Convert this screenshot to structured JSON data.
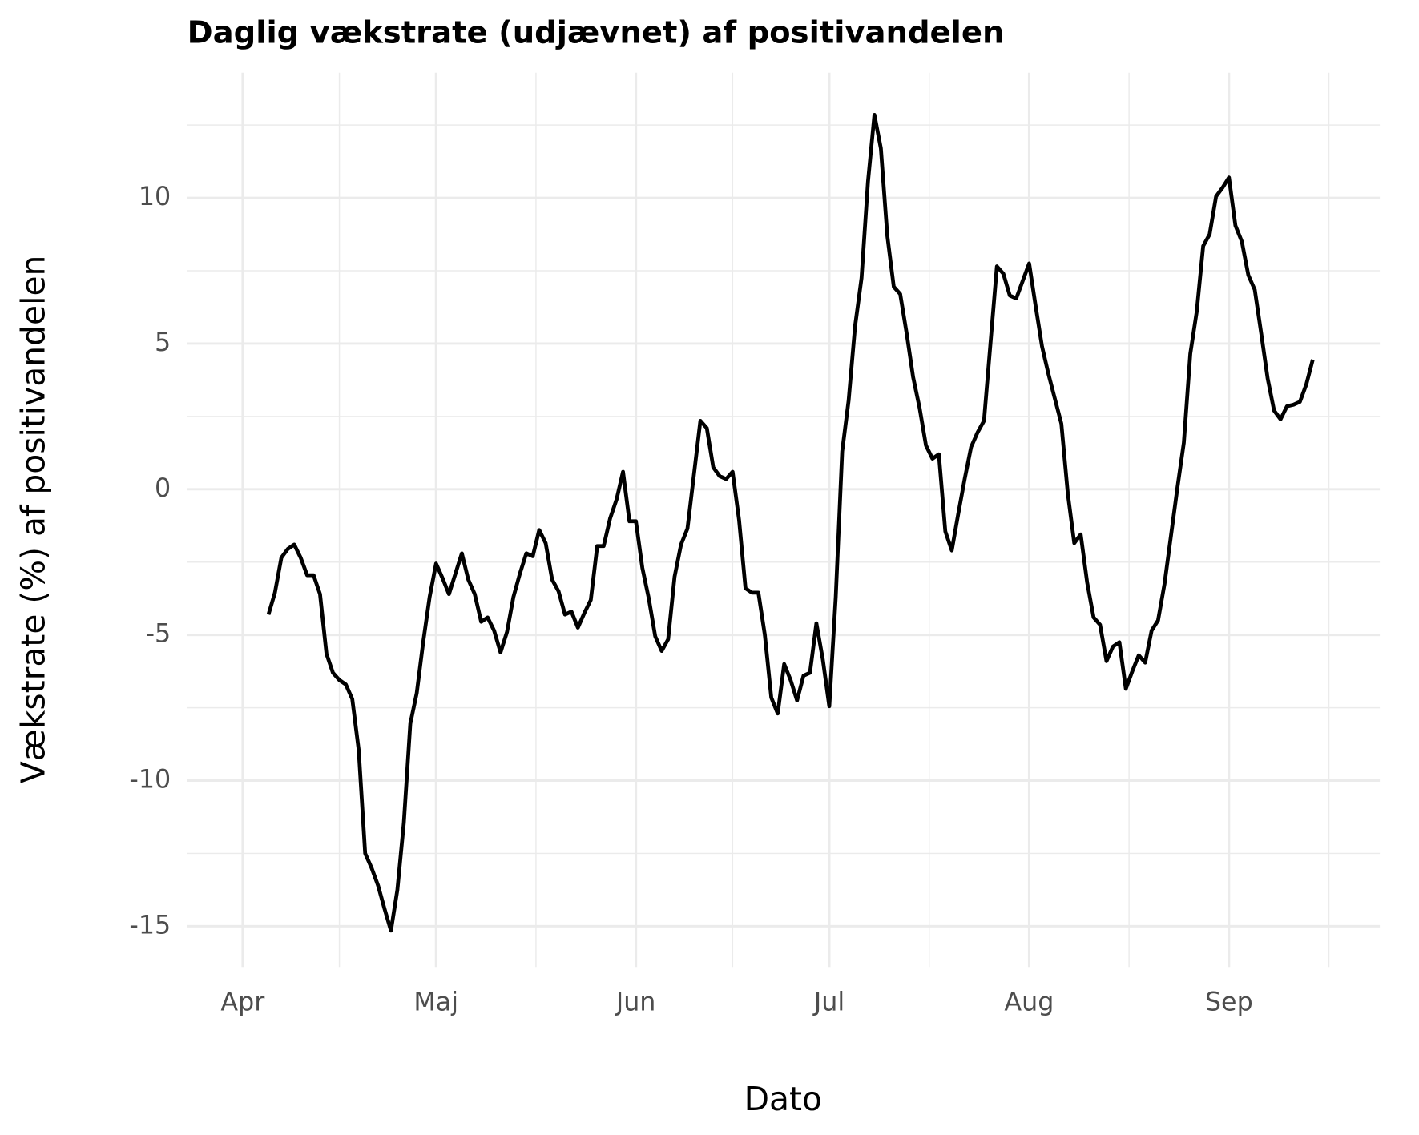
{
  "chart_data": {
    "type": "line",
    "title": "Daglig vækstrate (udjævnet) af positivandelen",
    "x_label": "Dato",
    "y_label": "Vækstrate (%) af positivandelen",
    "color": "#000000",
    "grid": true,
    "xlim": [
      -8.6,
      176.4
    ],
    "ylim": [
      -16.4,
      14.3
    ],
    "xticks": [
      {
        "value": 0,
        "label": "Apr"
      },
      {
        "value": 30,
        "label": "Maj"
      },
      {
        "value": 61,
        "label": "Jun"
      },
      {
        "value": 91,
        "label": "Jul"
      },
      {
        "value": 122,
        "label": "Aug"
      },
      {
        "value": 153,
        "label": "Sep"
      }
    ],
    "yticks": [
      -15,
      -10,
      -5,
      0,
      5,
      10
    ],
    "x": [
      4,
      5,
      6,
      7,
      8,
      9,
      10,
      11,
      12,
      13,
      14,
      15,
      16,
      17,
      18,
      19,
      20,
      21,
      22,
      23,
      24,
      25,
      26,
      27,
      28,
      29,
      30,
      31,
      32,
      33,
      34,
      35,
      36,
      37,
      38,
      39,
      40,
      41,
      42,
      43,
      44,
      45,
      46,
      47,
      48,
      49,
      50,
      51,
      52,
      53,
      54,
      55,
      56,
      57,
      58,
      59,
      60,
      61,
      62,
      63,
      64,
      65,
      66,
      67,
      68,
      69,
      70,
      71,
      72,
      73,
      74,
      75,
      76,
      77,
      78,
      79,
      80,
      81,
      82,
      83,
      84,
      85,
      86,
      87,
      88,
      89,
      90,
      91,
      92,
      93,
      94,
      95,
      96,
      97,
      98,
      99,
      100,
      101,
      102,
      103,
      104,
      105,
      106,
      107,
      108,
      109,
      110,
      111,
      112,
      113,
      114,
      115,
      116,
      117,
      118,
      119,
      120,
      121,
      122,
      123,
      124,
      125,
      126,
      127,
      128,
      129,
      130,
      131,
      132,
      133,
      134,
      135,
      136,
      137,
      138,
      139,
      140,
      141,
      142,
      143,
      144,
      145,
      146,
      147,
      148,
      149,
      150,
      151,
      152,
      153,
      154,
      155,
      156,
      157,
      158,
      159,
      160,
      161,
      162,
      163,
      164,
      165,
      166
    ],
    "values": [
      -4.3,
      -3.55,
      -2.35,
      -2.05,
      -1.9,
      -2.35,
      -2.95,
      -2.95,
      -3.6,
      -5.65,
      -6.3,
      -6.55,
      -6.7,
      -7.2,
      -8.95,
      -12.5,
      -13.0,
      -13.6,
      -14.4,
      -15.15,
      -13.75,
      -11.45,
      -8.05,
      -7.0,
      -5.25,
      -3.7,
      -2.55,
      -3.05,
      -3.6,
      -2.9,
      -2.2,
      -3.1,
      -3.6,
      -4.55,
      -4.4,
      -4.85,
      -5.6,
      -4.9,
      -3.7,
      -2.9,
      -2.2,
      -2.3,
      -1.4,
      -1.85,
      -3.1,
      -3.5,
      -4.3,
      -4.2,
      -4.75,
      -4.25,
      -3.8,
      -1.95,
      -1.95,
      -1.0,
      -0.35,
      0.6,
      -1.1,
      -1.1,
      -2.7,
      -3.75,
      -5.05,
      -5.55,
      -5.15,
      -3.0,
      -1.9,
      -1.35,
      0.5,
      2.35,
      2.1,
      0.75,
      0.45,
      0.35,
      0.6,
      -1.05,
      -3.4,
      -3.55,
      -3.55,
      -5.0,
      -7.15,
      -7.7,
      -6.0,
      -6.55,
      -7.25,
      -6.4,
      -6.3,
      -4.6,
      -5.85,
      -7.45,
      -3.7,
      1.3,
      3.05,
      5.6,
      7.25,
      10.55,
      12.85,
      11.7,
      8.7,
      6.95,
      6.7,
      5.35,
      3.85,
      2.8,
      1.5,
      1.05,
      1.2,
      -1.45,
      -2.1,
      -0.85,
      0.35,
      1.45,
      1.95,
      2.35,
      5.0,
      7.65,
      7.4,
      6.65,
      6.55,
      7.15,
      7.75,
      6.3,
      4.9,
      3.95,
      3.1,
      2.25,
      -0.15,
      -1.85,
      -1.55,
      -3.2,
      -4.4,
      -4.65,
      -5.9,
      -5.4,
      -5.25,
      -6.85,
      -6.25,
      -5.7,
      -5.95,
      -4.85,
      -4.5,
      -3.25,
      -1.6,
      0.05,
      1.6,
      4.65,
      6.1,
      8.35,
      8.75,
      10.05,
      10.35,
      10.7,
      9.05,
      8.5,
      7.35,
      6.85,
      5.35,
      3.8,
      2.7,
      2.4,
      2.85,
      2.9,
      3.0,
      3.6,
      4.45
    ]
  }
}
